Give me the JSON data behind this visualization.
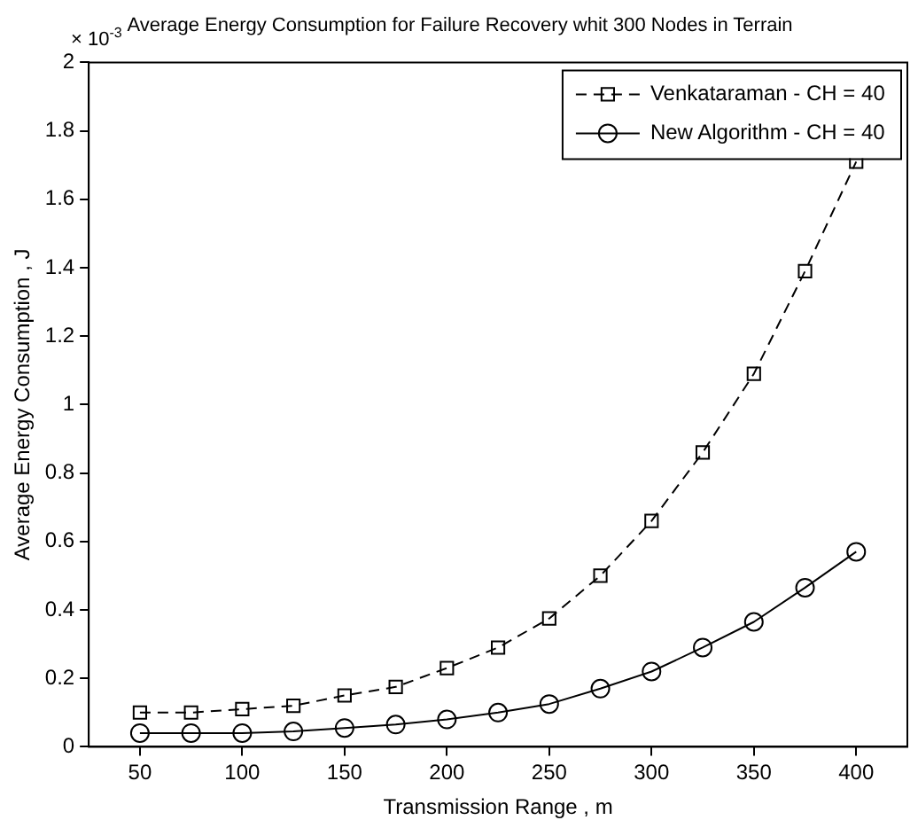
{
  "chart_data": {
    "type": "line",
    "title": "Average Energy Consumption for Failure Recovery whit 300 Nodes in Terrain",
    "xlabel": "Transmission Range , m",
    "ylabel": "Average Energy Consumption , J",
    "annotations": [
      "× 10$^{-3}$"
    ],
    "x": [
      50,
      75,
      100,
      125,
      150,
      175,
      200,
      225,
      250,
      275,
      300,
      325,
      350,
      375,
      400
    ],
    "series": [
      {
        "name": "Venkataraman - CH = 40",
        "color": "#000000",
        "marker": "square",
        "line_style": "dashed",
        "values": [
          0.1,
          0.1,
          0.11,
          0.12,
          0.15,
          0.175,
          0.23,
          0.29,
          0.375,
          0.5,
          0.66,
          0.86,
          1.09,
          1.39,
          1.71
        ]
      },
      {
        "name": "New Algorithm - CH = 40",
        "color": "#000000",
        "marker": "circle",
        "line_style": "solid",
        "values": [
          0.04,
          0.04,
          0.04,
          0.045,
          0.055,
          0.065,
          0.08,
          0.1,
          0.125,
          0.17,
          0.22,
          0.29,
          0.365,
          0.465,
          0.57
        ]
      }
    ],
    "xlim": [
      25,
      425
    ],
    "xticks": [
      50,
      100,
      150,
      200,
      250,
      300,
      350,
      400
    ],
    "ylim": [
      0,
      2
    ],
    "yticks": [
      0,
      0.2,
      0.4,
      0.6,
      0.8,
      1,
      1.2,
      1.4,
      1.6,
      1.8,
      2
    ],
    "grid": false,
    "legend": "top right"
  }
}
